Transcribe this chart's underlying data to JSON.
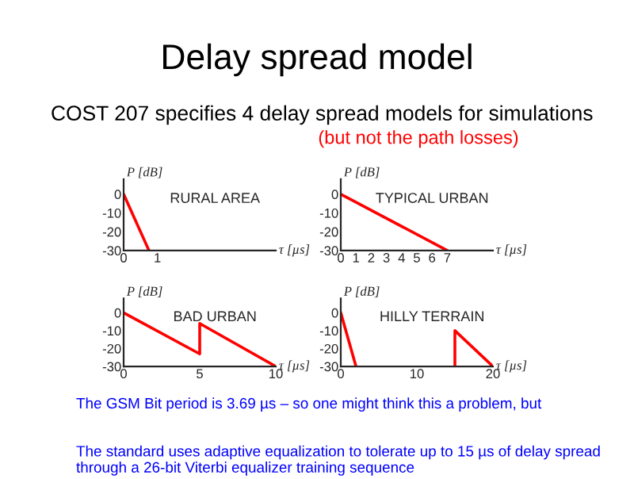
{
  "chart_data": [
    {
      "type": "line",
      "title": "RURAL AREA",
      "xlabel": "τ [µs]",
      "ylabel": "P [dB]",
      "xlim": [
        0,
        4.5
      ],
      "xticks": [
        0,
        1
      ],
      "ylim": [
        -30,
        8
      ],
      "yticks": [
        0,
        -10,
        -20,
        -30
      ],
      "grid": false,
      "marker": "none",
      "series": [
        {
          "color": "#ff0000",
          "x": [
            0,
            0.75
          ],
          "values": [
            0,
            -30
          ]
        }
      ],
      "annotations": [
        "Delay spread model",
        "COST 207 specifies 4 delay spread models for simulations",
        "(but not the path losses)"
      ]
    },
    {
      "type": "line",
      "title": "TYPICAL URBAN",
      "xlabel": "τ [µs]",
      "ylabel": "P [dB]",
      "xlim": [
        0,
        10
      ],
      "xticks": [
        0,
        1,
        2,
        3,
        4,
        5,
        6,
        7
      ],
      "ylim": [
        -30,
        8
      ],
      "yticks": [
        0,
        -10,
        -20,
        -30
      ],
      "grid": false,
      "marker": "none",
      "series": [
        {
          "color": "#ff0000",
          "x": [
            0,
            7
          ],
          "values": [
            0,
            -30
          ]
        }
      ]
    },
    {
      "type": "line",
      "title": "BAD URBAN",
      "xlabel": "τ [µs]",
      "ylabel": "P [dB]",
      "xlim": [
        0,
        10
      ],
      "xticks": [
        0,
        5,
        10
      ],
      "ylim": [
        -30,
        8
      ],
      "yticks": [
        0,
        -10,
        -20,
        -30
      ],
      "grid": false,
      "marker": "none",
      "series": [
        {
          "color": "#ff0000",
          "x": [
            0,
            5,
            5,
            10
          ],
          "values": [
            0,
            -23,
            -6,
            -30
          ]
        }
      ]
    },
    {
      "type": "line",
      "title": "HILLY TERRAIN",
      "xlabel": "τ [µs]",
      "ylabel": "P [dB]",
      "xlim": [
        0,
        20
      ],
      "xticks": [
        0,
        10,
        20
      ],
      "ylim": [
        -30,
        8
      ],
      "yticks": [
        0,
        -10,
        -20,
        -30
      ],
      "grid": false,
      "marker": "none",
      "series": [
        {
          "color": "#ff0000",
          "x": [
            0,
            2
          ],
          "values": [
            0,
            -30
          ]
        },
        {
          "color": "#ff0000",
          "x": [
            15,
            15,
            20
          ],
          "values": [
            -30,
            -10,
            -30
          ]
        }
      ],
      "annotations": [
        "The GSM Bit period is 3.69 µs – so one might think this a problem, but",
        "The standard uses adaptive equalization to tolerate up to 15 µs of delay spread through a 26-bit Viterbi equalizer training sequence"
      ]
    }
  ]
}
